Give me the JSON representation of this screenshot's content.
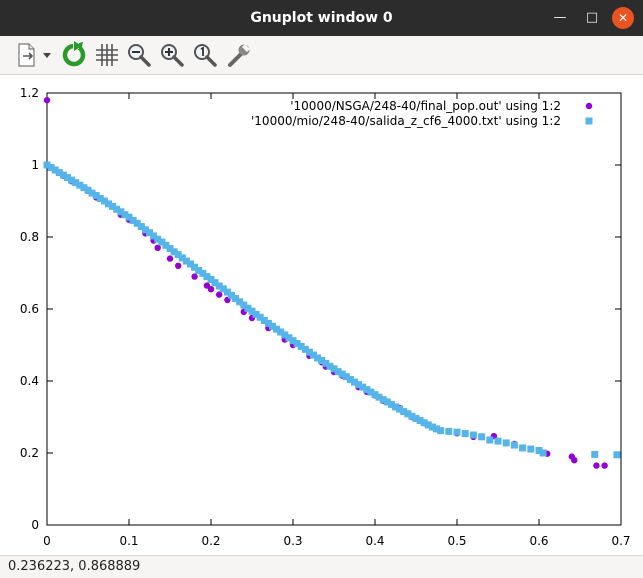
{
  "window": {
    "title": "Gnuplot window 0",
    "min_glyph": "—",
    "max_glyph": "□",
    "close_glyph": "✕"
  },
  "toolbar": {
    "items": [
      {
        "icon": "export-icon"
      },
      {
        "icon": "dropdown-arrow-icon"
      },
      {
        "icon": "replot-icon"
      },
      {
        "icon": "grid-icon"
      },
      {
        "icon": "zoom-out-icon"
      },
      {
        "icon": "zoom-in-icon"
      },
      {
        "icon": "zoom-reset-icon"
      },
      {
        "icon": "options-icon"
      }
    ]
  },
  "status": {
    "coords": "0.236223,  0.868889"
  },
  "colors": {
    "series1": "#9400d3",
    "series2": "#56b4e9",
    "close_button": "#e95420",
    "titlebar": "#2c2c2c"
  },
  "chart_data": {
    "type": "scatter",
    "title": "",
    "xlabel": "",
    "ylabel": "",
    "xlim": [
      0,
      0.7
    ],
    "ylim": [
      0,
      1.2
    ],
    "xticks": [
      "0",
      "0.1",
      "0.2",
      "0.3",
      "0.4",
      "0.5",
      "0.6",
      "0.7"
    ],
    "yticks": [
      "0",
      "0.2",
      "0.4",
      "0.6",
      "0.8",
      "1",
      "1.2"
    ],
    "legend_position": "top-right",
    "grid": false,
    "series": [
      {
        "name": "'10000/NSGA/248-40/final_pop.out' using 1:2",
        "marker": "circle",
        "color": "#9400d3",
        "points": [
          [
            0.0,
            1.18
          ],
          [
            0.0,
            1.0
          ],
          [
            0.01,
            0.985
          ],
          [
            0.02,
            0.97
          ],
          [
            0.03,
            0.955
          ],
          [
            0.05,
            0.928
          ],
          [
            0.06,
            0.91
          ],
          [
            0.08,
            0.885
          ],
          [
            0.09,
            0.862
          ],
          [
            0.1,
            0.848
          ],
          [
            0.12,
            0.81
          ],
          [
            0.13,
            0.79
          ],
          [
            0.135,
            0.77
          ],
          [
            0.15,
            0.74
          ],
          [
            0.16,
            0.72
          ],
          [
            0.18,
            0.69
          ],
          [
            0.195,
            0.665
          ],
          [
            0.2,
            0.655
          ],
          [
            0.21,
            0.64
          ],
          [
            0.22,
            0.625
          ],
          [
            0.24,
            0.592
          ],
          [
            0.25,
            0.575
          ],
          [
            0.27,
            0.547
          ],
          [
            0.29,
            0.515
          ],
          [
            0.3,
            0.5
          ],
          [
            0.32,
            0.47
          ],
          [
            0.335,
            0.452
          ],
          [
            0.34,
            0.44
          ],
          [
            0.35,
            0.425
          ],
          [
            0.36,
            0.415
          ],
          [
            0.38,
            0.383
          ],
          [
            0.39,
            0.37
          ],
          [
            0.4,
            0.36
          ],
          [
            0.41,
            0.345
          ],
          [
            0.43,
            0.325
          ],
          [
            0.445,
            0.3
          ],
          [
            0.46,
            0.283
          ],
          [
            0.48,
            0.262
          ],
          [
            0.5,
            0.255
          ],
          [
            0.52,
            0.245
          ],
          [
            0.545,
            0.247
          ],
          [
            0.57,
            0.225
          ],
          [
            0.6,
            0.207
          ],
          [
            0.61,
            0.198
          ],
          [
            0.64,
            0.19
          ],
          [
            0.643,
            0.18
          ],
          [
            0.67,
            0.165
          ],
          [
            0.68,
            0.165
          ]
        ]
      },
      {
        "name": "'10000/mio/248-40/salida_z_cf6_4000.txt' using 1:2",
        "marker": "square",
        "color": "#56b4e9",
        "points": [
          [
            0.0,
            1.0
          ],
          [
            0.005,
            0.993
          ],
          [
            0.01,
            0.986
          ],
          [
            0.015,
            0.979
          ],
          [
            0.02,
            0.972
          ],
          [
            0.025,
            0.965
          ],
          [
            0.03,
            0.958
          ],
          [
            0.035,
            0.951
          ],
          [
            0.04,
            0.944
          ],
          [
            0.045,
            0.937
          ],
          [
            0.05,
            0.93
          ],
          [
            0.055,
            0.922
          ],
          [
            0.06,
            0.915
          ],
          [
            0.065,
            0.907
          ],
          [
            0.07,
            0.9
          ],
          [
            0.075,
            0.892
          ],
          [
            0.08,
            0.885
          ],
          [
            0.085,
            0.877
          ],
          [
            0.09,
            0.87
          ],
          [
            0.095,
            0.862
          ],
          [
            0.1,
            0.855
          ],
          [
            0.105,
            0.846
          ],
          [
            0.11,
            0.838
          ],
          [
            0.115,
            0.829
          ],
          [
            0.12,
            0.82
          ],
          [
            0.125,
            0.812
          ],
          [
            0.13,
            0.803
          ],
          [
            0.135,
            0.794
          ],
          [
            0.14,
            0.786
          ],
          [
            0.145,
            0.777
          ],
          [
            0.15,
            0.768
          ],
          [
            0.155,
            0.759
          ],
          [
            0.16,
            0.751
          ],
          [
            0.165,
            0.742
          ],
          [
            0.17,
            0.733
          ],
          [
            0.175,
            0.725
          ],
          [
            0.18,
            0.716
          ],
          [
            0.185,
            0.707
          ],
          [
            0.19,
            0.699
          ],
          [
            0.195,
            0.69
          ],
          [
            0.2,
            0.682
          ],
          [
            0.205,
            0.673
          ],
          [
            0.21,
            0.664
          ],
          [
            0.215,
            0.656
          ],
          [
            0.22,
            0.647
          ],
          [
            0.225,
            0.638
          ],
          [
            0.23,
            0.629
          ],
          [
            0.235,
            0.62
          ],
          [
            0.24,
            0.611
          ],
          [
            0.245,
            0.602
          ],
          [
            0.25,
            0.594
          ],
          [
            0.255,
            0.585
          ],
          [
            0.26,
            0.577
          ],
          [
            0.265,
            0.568
          ],
          [
            0.27,
            0.56
          ],
          [
            0.275,
            0.552
          ],
          [
            0.28,
            0.544
          ],
          [
            0.285,
            0.536
          ],
          [
            0.29,
            0.528
          ],
          [
            0.295,
            0.52
          ],
          [
            0.3,
            0.512
          ],
          [
            0.305,
            0.504
          ],
          [
            0.31,
            0.496
          ],
          [
            0.315,
            0.488
          ],
          [
            0.32,
            0.48
          ],
          [
            0.325,
            0.472
          ],
          [
            0.33,
            0.464
          ],
          [
            0.335,
            0.457
          ],
          [
            0.34,
            0.449
          ],
          [
            0.345,
            0.441
          ],
          [
            0.35,
            0.434
          ],
          [
            0.355,
            0.426
          ],
          [
            0.36,
            0.419
          ],
          [
            0.365,
            0.412
          ],
          [
            0.37,
            0.404
          ],
          [
            0.375,
            0.397
          ],
          [
            0.38,
            0.39
          ],
          [
            0.385,
            0.383
          ],
          [
            0.39,
            0.376
          ],
          [
            0.395,
            0.369
          ],
          [
            0.4,
            0.362
          ],
          [
            0.405,
            0.355
          ],
          [
            0.41,
            0.348
          ],
          [
            0.415,
            0.342
          ],
          [
            0.42,
            0.335
          ],
          [
            0.425,
            0.328
          ],
          [
            0.43,
            0.322
          ],
          [
            0.435,
            0.315
          ],
          [
            0.44,
            0.309
          ],
          [
            0.445,
            0.302
          ],
          [
            0.45,
            0.296
          ],
          [
            0.455,
            0.29
          ],
          [
            0.46,
            0.284
          ],
          [
            0.465,
            0.278
          ],
          [
            0.47,
            0.272
          ],
          [
            0.475,
            0.267
          ],
          [
            0.48,
            0.262
          ],
          [
            0.49,
            0.26
          ],
          [
            0.5,
            0.258
          ],
          [
            0.51,
            0.254
          ],
          [
            0.52,
            0.25
          ],
          [
            0.53,
            0.245
          ],
          [
            0.54,
            0.236
          ],
          [
            0.55,
            0.233
          ],
          [
            0.56,
            0.228
          ],
          [
            0.57,
            0.222
          ],
          [
            0.58,
            0.214
          ],
          [
            0.59,
            0.211
          ],
          [
            0.6,
            0.207
          ],
          [
            0.605,
            0.2
          ],
          [
            0.668,
            0.196
          ],
          [
            0.695,
            0.195
          ]
        ]
      }
    ]
  }
}
